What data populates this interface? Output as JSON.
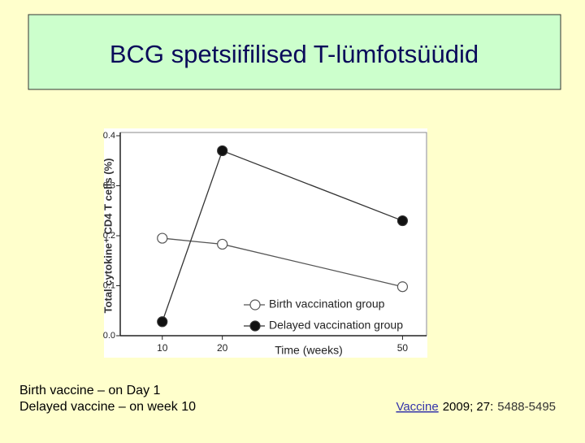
{
  "slide": {
    "title": "BCG spetsiifilised T-lümfotsüüdid",
    "notes": [
      "Birth vaccine – on Day 1",
      "Delayed vaccine – on week 10"
    ],
    "citation": {
      "journal": "Vaccine",
      "year_volume": "2009; 27:",
      "pages": "5488-5495"
    }
  },
  "chart_data": {
    "type": "line",
    "x": [
      10,
      20,
      50
    ],
    "xlim": [
      3,
      54
    ],
    "xticks": [
      10,
      20,
      50
    ],
    "ylim": [
      0,
      0.4
    ],
    "yticks": [
      {
        "value": 0,
        "label": "0.0"
      },
      0.1,
      0.2,
      0.3,
      0.4
    ],
    "x_label": "Time (weeks)",
    "y_label": "Total cytokine⁺ CD4 T cells (%)",
    "legend": "lower right",
    "series": [
      {
        "name": "Birth vaccination group",
        "color": "#555555",
        "marker_fill": "#ffffff",
        "values": [
          0.195,
          0.183,
          0.098
        ]
      },
      {
        "name": "Delayed vaccination group",
        "color": "#333333",
        "marker_fill": "#111111",
        "values": [
          0.028,
          0.37,
          0.23
        ]
      }
    ]
  }
}
